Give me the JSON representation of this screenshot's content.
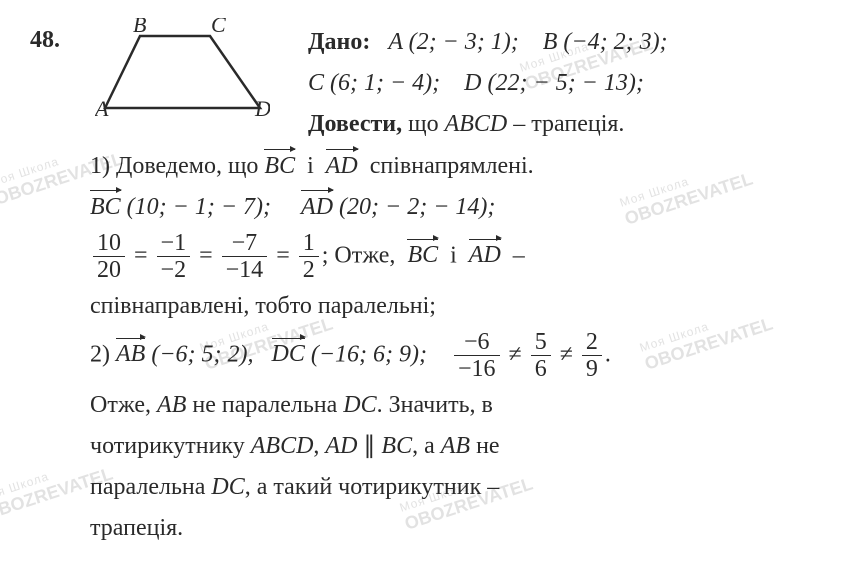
{
  "problem_number": "48.",
  "watermark_text": "Моя Школа\nOBOZREVATEL",
  "figure": {
    "labels": {
      "A": "A",
      "B": "B",
      "C": "C",
      "D": "D"
    },
    "stroke": "#2a2a2a",
    "stroke_width": 2
  },
  "given_label": "Дано:",
  "points": {
    "A": "A (2; − 3; 1);",
    "B": "B (−4; 2; 3);",
    "C": "C (6; 1; − 4);",
    "D": "D (22; − 5; − 13);"
  },
  "prove_label": "Довести,",
  "prove_rest": "що ABCD – трапеція.",
  "step1": {
    "lead": "1) Доведемо, що",
    "vec1": "BC",
    "mid": "і",
    "vec2": "AD",
    "tail": "співнапрямлені.",
    "bc_coords": "(10; − 1; − 7);",
    "ad_coords": "(20; − 2; − 14);",
    "frac1_num": "10",
    "frac1_den": "20",
    "frac2_num": "−1",
    "frac2_den": "−2",
    "frac3_num": "−7",
    "frac3_den": "−14",
    "frac4_num": "1",
    "frac4_den": "2",
    "after_eq": "; Отже,",
    "dash": "–",
    "concl": "співнаправлені, тобто паралельні;"
  },
  "step2": {
    "lead": "2)",
    "vecAB": "AB",
    "ab_coords": "(−6; 5; 2),",
    "vecDC": "DC",
    "dc_coords": "(−16; 6; 9);",
    "frac1_num": "−6",
    "frac1_den": "−16",
    "frac2_num": "5",
    "frac2_den": "6",
    "frac3_num": "2",
    "frac3_den": "9",
    "ne": "≠",
    "line1a": "Отже,",
    "AB": "AB",
    "line1b": "не паралельна",
    "DC": "DC",
    "line1c": ". Значить, в",
    "line2a": "чотирикутнику",
    "ABCD": "ABCD",
    "AD": "AD",
    "par": "∥",
    "BC": "BC",
    "line2b": ", а",
    "line2c": "не",
    "line3a": "паралельна",
    "line3b": ", а такий чотирикутник –",
    "line4": "трапеція."
  }
}
